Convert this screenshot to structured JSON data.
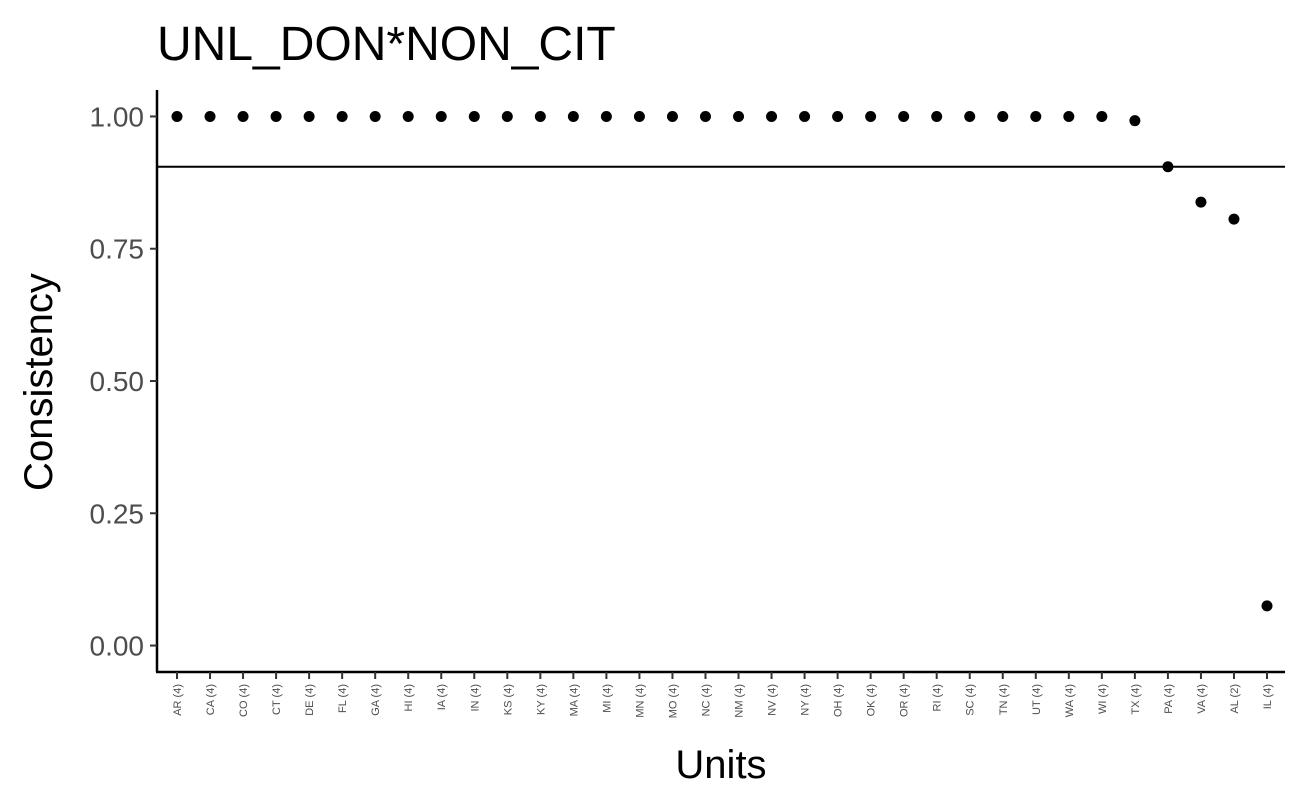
{
  "chart_data": {
    "type": "scatter",
    "title": "UNL_DON*NON_CIT",
    "xlabel": "Units",
    "ylabel": "Consistency",
    "ylim": [
      -0.05,
      1.05
    ],
    "yticks": [
      0.0,
      0.25,
      0.5,
      0.75,
      1.0
    ],
    "ytick_labels": [
      "0.00",
      "0.25",
      "0.50",
      "0.75",
      "1.00"
    ],
    "reference_line": 0.905,
    "grid": false,
    "point_color": "#000000",
    "categories": [
      "AR (4)",
      "CA (4)",
      "CO (4)",
      "CT (4)",
      "DE (4)",
      "FL (4)",
      "GA (4)",
      "HI (4)",
      "IA (4)",
      "IN (4)",
      "KS (4)",
      "KY (4)",
      "MA (4)",
      "MI (4)",
      "MN (4)",
      "MO (4)",
      "NC (4)",
      "NM (4)",
      "NV (4)",
      "NY (4)",
      "OH (4)",
      "OK (4)",
      "OR (4)",
      "RI (4)",
      "SC (4)",
      "TN (4)",
      "UT (4)",
      "WA (4)",
      "WI (4)",
      "TX (4)",
      "PA (4)",
      "VA (4)",
      "AL (2)",
      "IL (4)"
    ],
    "values": [
      1.0,
      1.0,
      1.0,
      1.0,
      1.0,
      1.0,
      1.0,
      1.0,
      1.0,
      1.0,
      1.0,
      1.0,
      1.0,
      1.0,
      1.0,
      1.0,
      1.0,
      1.0,
      1.0,
      1.0,
      1.0,
      1.0,
      1.0,
      1.0,
      1.0,
      1.0,
      1.0,
      1.0,
      1.0,
      0.992,
      0.905,
      0.838,
      0.806,
      0.075
    ]
  }
}
